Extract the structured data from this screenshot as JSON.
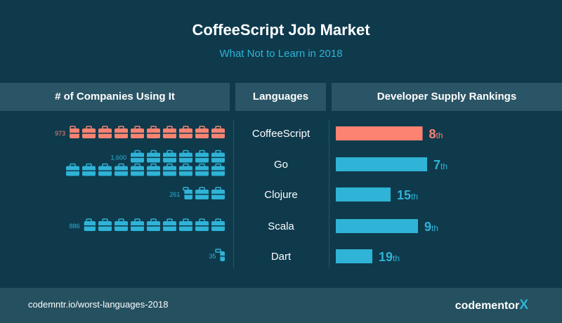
{
  "header": {
    "title": "CoffeeScript Job Market",
    "subtitle": "What Not to Learn in 2018"
  },
  "columns": {
    "companies": "# of Companies Using It",
    "languages": "Languages",
    "rankings": "Developer Supply Rankings"
  },
  "colors": {
    "highlight": "#fc8372",
    "accent": "#2fb3d6",
    "background": "#0e3a4c",
    "panel": "#2a5566"
  },
  "icon": "briefcase-icon",
  "chart_data": {
    "type": "bar",
    "categories": [
      "CoffeeScript",
      "Go",
      "Clojure",
      "Scala",
      "Dart"
    ],
    "series": [
      {
        "values": [
          973,
          1600,
          261,
          886,
          35
        ],
        "display": [
          "973",
          "1,600",
          "261",
          "886",
          "35"
        ]
      },
      {
        "values": [
          8,
          7,
          15,
          9,
          19
        ]
      }
    ],
    "rank_suffixes": [
      "th",
      "th",
      "th",
      "th",
      "th"
    ],
    "highlight_category": "CoffeeScript"
  },
  "footer": {
    "url": "codemntr.io/worst-languages-2018",
    "logo_text": "codementor",
    "logo_mark": "X"
  }
}
